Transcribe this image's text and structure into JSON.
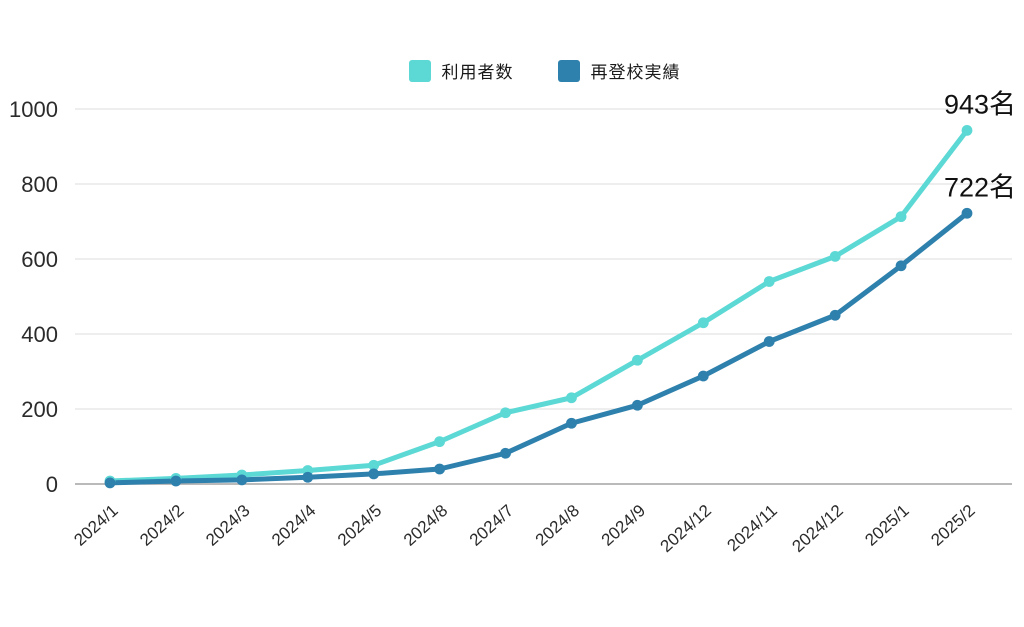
{
  "chart_data": {
    "type": "line",
    "title": "",
    "categories": [
      "2024/1",
      "2024/2",
      "2024/3",
      "2024/4",
      "2024/5",
      "2024/8",
      "2024/7",
      "2024/8",
      "2024/9",
      "2024/12",
      "2024/11",
      "2024/12",
      "2025/1",
      "2025/2"
    ],
    "series": [
      {
        "name": "利用者数",
        "color": "#5cd8d5",
        "values": [
          8,
          15,
          24,
          36,
          50,
          113,
          190,
          230,
          330,
          430,
          540,
          607,
          713,
          943
        ],
        "end_label": "943名"
      },
      {
        "name": "再登校実績",
        "color": "#2e80ad",
        "values": [
          3,
          8,
          11,
          18,
          27,
          40,
          82,
          162,
          210,
          288,
          380,
          450,
          582,
          722
        ],
        "end_label": "722名"
      }
    ],
    "yticks": [
      0,
      200,
      400,
      600,
      800,
      1000
    ],
    "ylim": [
      0,
      1000
    ],
    "grid": true,
    "legend_position": "top-center",
    "xlabel": "",
    "ylabel": "",
    "colors": {
      "gridline": "#e3e3e3",
      "axis_line": "#a3a3a3",
      "tick_text": "#2b2b2b",
      "annotation_text": "#111111",
      "background": "#ffffff"
    }
  }
}
